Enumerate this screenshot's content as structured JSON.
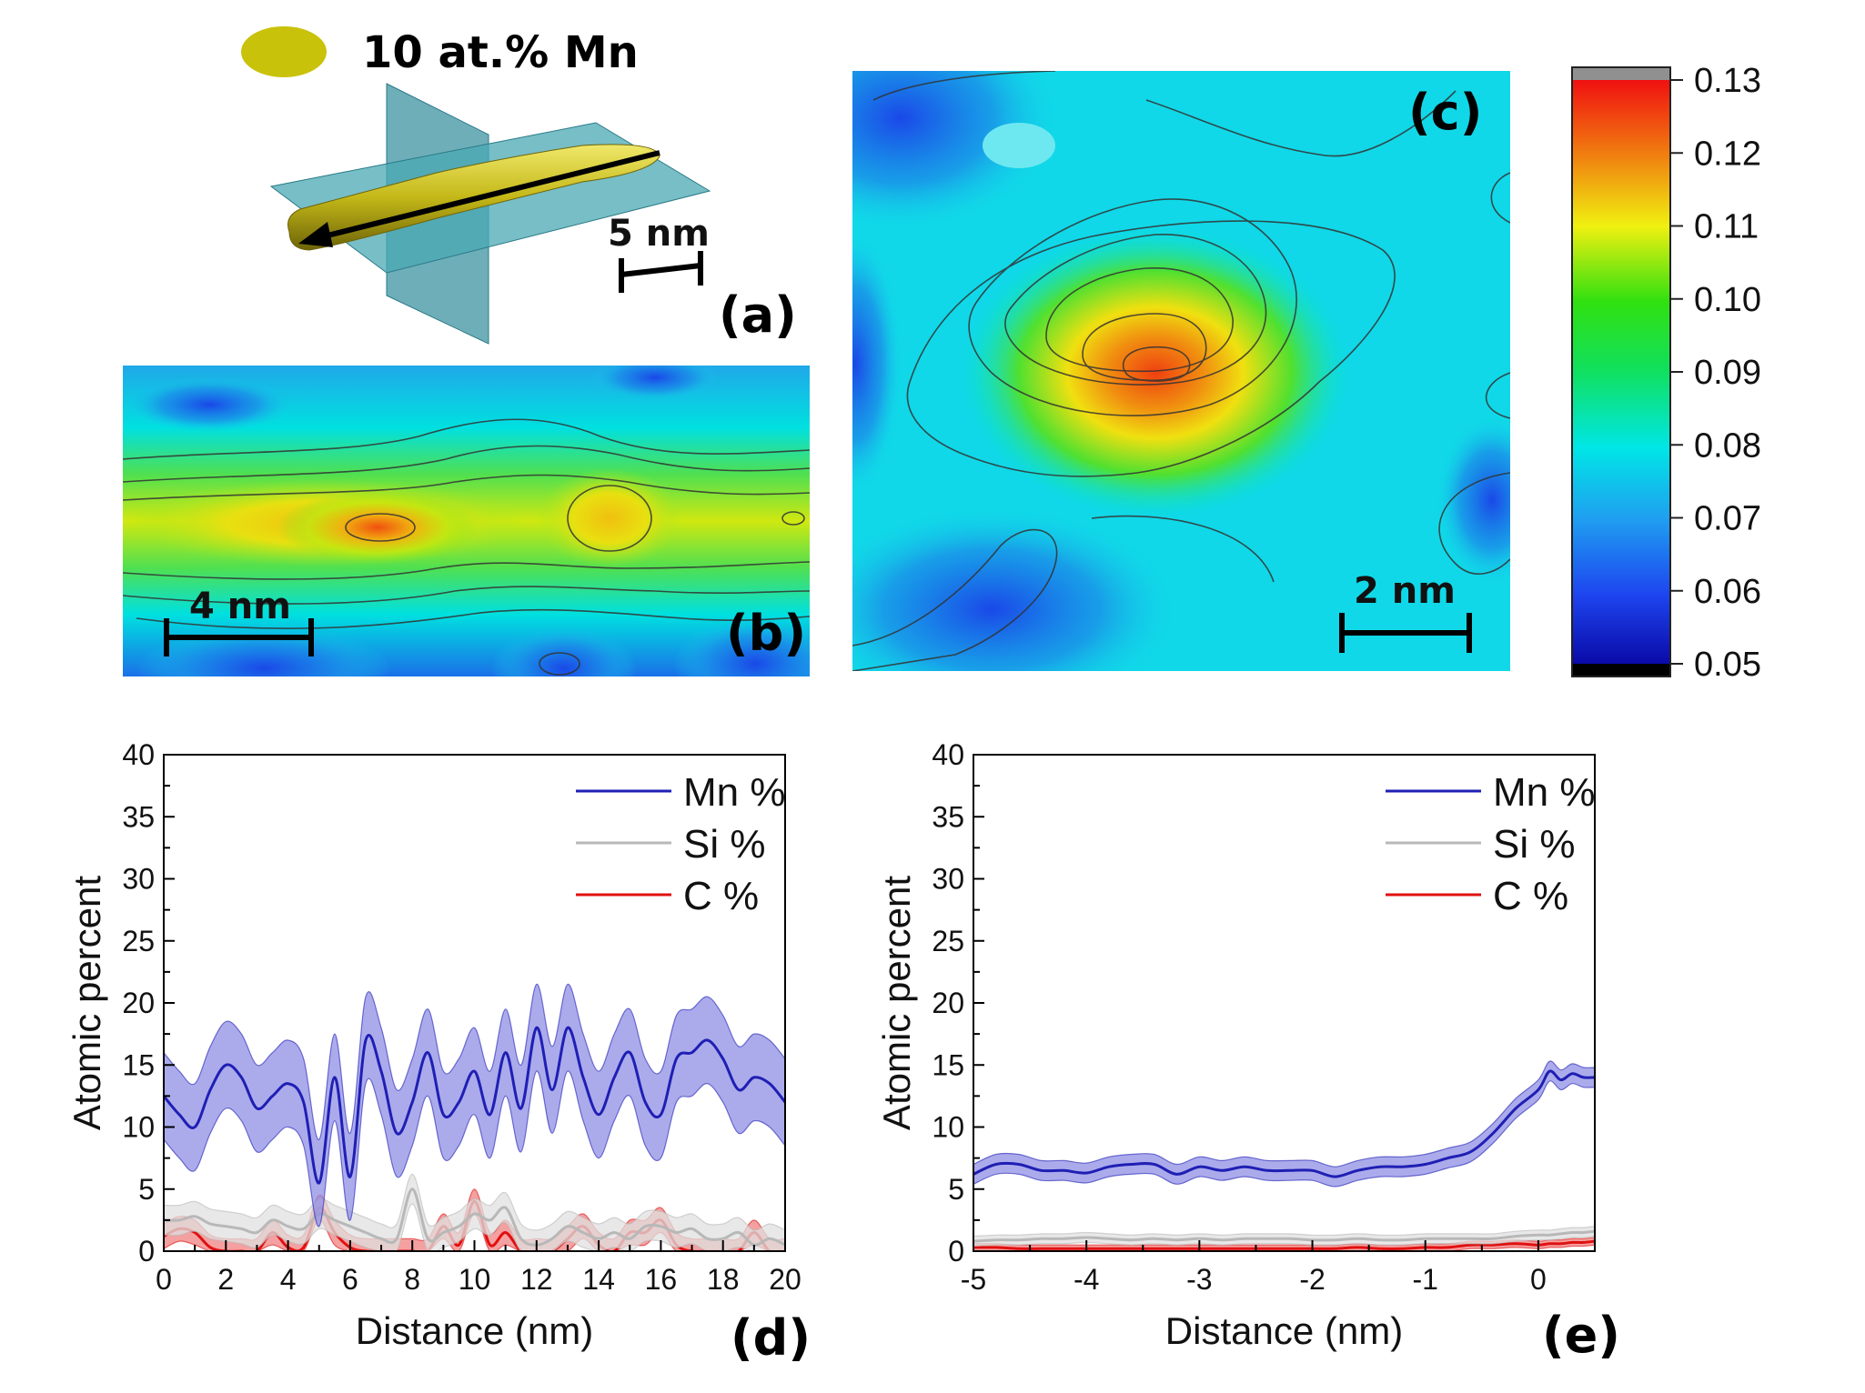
{
  "panel_a": {
    "legend_label": "10 at.% Mn",
    "legend_color": "#c9c20a",
    "scale_label": "5 nm",
    "panel_label": "(a)"
  },
  "panel_b": {
    "scale_label": "4 nm",
    "panel_label": "(b)"
  },
  "panel_c": {
    "scale_label": "2 nm",
    "panel_label": "(c)"
  },
  "colorbar": {
    "ticks": [
      "0.13",
      "0.12",
      "0.11",
      "0.10",
      "0.09",
      "0.08",
      "0.07",
      "0.06",
      "0.05"
    ],
    "range": [
      0.05,
      0.13
    ]
  },
  "chart_data": [
    {
      "panel": "(d)",
      "type": "line",
      "xlabel": "Distance (nm)",
      "ylabel": "Atomic percent",
      "xlim": [
        0,
        20
      ],
      "ylim": [
        0,
        40
      ],
      "xticks": [
        "0",
        "2",
        "4",
        "6",
        "8",
        "10",
        "12",
        "14",
        "16",
        "18",
        "20"
      ],
      "yticks": [
        "0",
        "5",
        "10",
        "15",
        "20",
        "25",
        "30",
        "35",
        "40"
      ],
      "legend_position": "top-right",
      "x": [
        0,
        0.5,
        1,
        1.5,
        2,
        2.5,
        3,
        3.5,
        4,
        4.5,
        5,
        5.5,
        6,
        6.5,
        7,
        7.5,
        8,
        8.5,
        9,
        9.5,
        10,
        10.5,
        11,
        11.5,
        12,
        12.5,
        13,
        13.5,
        14,
        14.5,
        15,
        15.5,
        16,
        16.5,
        17,
        17.5,
        18,
        18.5,
        19,
        19.5,
        20
      ],
      "series": [
        {
          "name": "Mn %",
          "color": "#1f1fb4",
          "band_color": "#8f8fe6",
          "band": 3.5,
          "values": [
            12.5,
            11,
            10,
            13,
            15,
            14,
            11.5,
            12.5,
            13.5,
            12,
            5.5,
            14,
            6,
            17,
            14.5,
            9.5,
            12,
            16,
            11,
            12,
            14.5,
            11,
            16,
            11.5,
            18,
            13,
            18,
            14,
            11,
            14,
            16,
            12,
            11,
            15.5,
            16,
            17,
            15.5,
            13,
            14,
            13.5,
            12
          ]
        },
        {
          "name": "Si %",
          "color": "#b8b8b8",
          "band_color": "#e0e0e0",
          "band": 1.2,
          "values": [
            2.5,
            2.5,
            2.8,
            2.2,
            2,
            1.8,
            1.5,
            2.5,
            2,
            1.8,
            3,
            2.5,
            2,
            1.5,
            1,
            1,
            5,
            1,
            1.5,
            2,
            3,
            2.5,
            3.5,
            1,
            0.5,
            1,
            2,
            1.5,
            1,
            1.5,
            1,
            2,
            2,
            1.5,
            1.8,
            1,
            1,
            1.5,
            0.5,
            1,
            0.5
          ]
        },
        {
          "name": "C %",
          "color": "#e01010",
          "band_color": "#f08080",
          "band": 1.0,
          "values": [
            1.2,
            1.8,
            1.5,
            0.3,
            0,
            0,
            0,
            1.5,
            0.3,
            0.3,
            3.5,
            1.5,
            0.3,
            0,
            0,
            0,
            0,
            0,
            2,
            0.5,
            4,
            0.5,
            1.5,
            0,
            0,
            0,
            1,
            2,
            0.5,
            0,
            1.5,
            1.5,
            2.5,
            0.5,
            0,
            0,
            0,
            0,
            1.5,
            0,
            0
          ]
        }
      ]
    },
    {
      "panel": "(e)",
      "type": "line",
      "xlabel": "Distance (nm)",
      "ylabel": "Atomic percent",
      "xlim": [
        -5,
        0.5
      ],
      "ylim": [
        0,
        40
      ],
      "xticks": [
        "-5",
        "-4",
        "-3",
        "-2",
        "-1",
        "0"
      ],
      "yticks": [
        "0",
        "5",
        "10",
        "15",
        "20",
        "25",
        "30",
        "35",
        "40"
      ],
      "legend_position": "top-right",
      "x": [
        -5,
        -4.8,
        -4.6,
        -4.4,
        -4.2,
        -4,
        -3.8,
        -3.6,
        -3.4,
        -3.2,
        -3,
        -2.8,
        -2.6,
        -2.4,
        -2.2,
        -2,
        -1.8,
        -1.6,
        -1.4,
        -1.2,
        -1,
        -0.8,
        -0.6,
        -0.4,
        -0.2,
        0,
        0.1,
        0.2,
        0.3,
        0.4,
        0.5
      ],
      "series": [
        {
          "name": "Mn %",
          "color": "#1f1fb4",
          "band_color": "#8f8fe6",
          "band": 0.8,
          "values": [
            6.2,
            7,
            7,
            6.5,
            6.5,
            6.3,
            6.8,
            7,
            7,
            6.2,
            6.8,
            6.5,
            6.8,
            6.5,
            6.5,
            6.5,
            6,
            6.5,
            6.8,
            6.8,
            7,
            7.5,
            8,
            9.5,
            11.5,
            13,
            14.5,
            13.8,
            14.3,
            14,
            14
          ]
        },
        {
          "name": "Si %",
          "color": "#b8b8b8",
          "band_color": "#e0e0e0",
          "band": 0.4,
          "values": [
            0.8,
            0.9,
            0.9,
            1,
            1,
            1.1,
            1,
            0.9,
            1,
            0.9,
            1,
            0.9,
            1,
            1,
            1,
            0.9,
            0.9,
            1,
            0.9,
            0.9,
            1,
            1,
            1,
            1,
            1.2,
            1.3,
            1.3,
            1.4,
            1.5,
            1.5,
            1.6
          ]
        },
        {
          "name": "C %",
          "color": "#e01010",
          "band_color": "#f08080",
          "band": 0.3,
          "values": [
            0.3,
            0.3,
            0.2,
            0.2,
            0.2,
            0.2,
            0.2,
            0.2,
            0.2,
            0.2,
            0.2,
            0.2,
            0.2,
            0.2,
            0.2,
            0.2,
            0.2,
            0.3,
            0.2,
            0.2,
            0.3,
            0.3,
            0.5,
            0.5,
            0.6,
            0.5,
            0.6,
            0.6,
            0.7,
            0.7,
            0.8
          ]
        }
      ]
    }
  ]
}
